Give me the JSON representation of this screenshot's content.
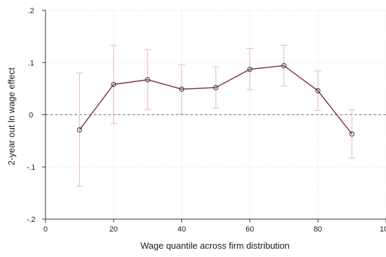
{
  "chart_data": {
    "type": "line",
    "title": "",
    "xlabel": "Wage quantile across firm distribution",
    "ylabel": "2-year out ln wage effect",
    "xlim": [
      0,
      100
    ],
    "ylim": [
      -0.2,
      0.2
    ],
    "x_ticks": [
      {
        "value": 0,
        "label": "0"
      },
      {
        "value": 20,
        "label": "20"
      },
      {
        "value": 40,
        "label": "40"
      },
      {
        "value": 60,
        "label": "60"
      },
      {
        "value": 80,
        "label": "80"
      },
      {
        "value": 100,
        "label": "100"
      }
    ],
    "y_ticks": [
      {
        "value": -0.2,
        "label": "-.2"
      },
      {
        "value": -0.1,
        "label": "-.1"
      },
      {
        "value": 0,
        "label": "0"
      },
      {
        "value": 0.1,
        "label": ".1"
      },
      {
        "value": 0.2,
        "label": ".2"
      }
    ],
    "grid": true,
    "reference_line_y": 0,
    "series": [
      {
        "x": [
          10,
          20,
          30,
          40,
          50,
          60,
          70,
          80,
          90
        ],
        "y": [
          -0.029,
          0.058,
          0.067,
          0.049,
          0.052,
          0.087,
          0.094,
          0.046,
          -0.037
        ],
        "ci_low": [
          -0.137,
          -0.017,
          0.01,
          0.002,
          0.013,
          0.048,
          0.055,
          0.008,
          -0.083
        ],
        "ci_high": [
          0.08,
          0.133,
          0.125,
          0.096,
          0.092,
          0.127,
          0.133,
          0.084,
          0.01
        ]
      }
    ],
    "colors": {
      "line": "#7d2a33",
      "marker_edge": "#333333",
      "error_bar": "#e6c2c7",
      "grid": "#dcdcdc",
      "reference_line": "#777777",
      "axis": "#333333"
    }
  }
}
